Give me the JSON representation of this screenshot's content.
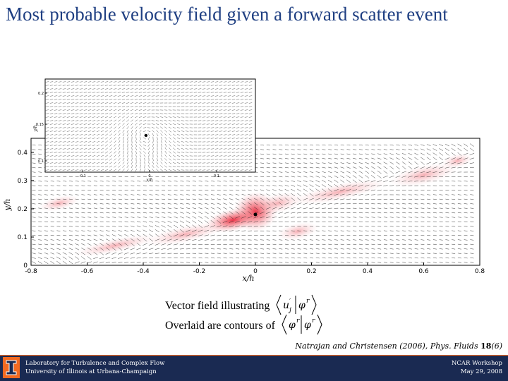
{
  "slide": {
    "title": "Most probable velocity field given a forward scatter event"
  },
  "chart_data": {
    "type": "vector-field-contour",
    "main": {
      "xlabel": "x/h",
      "ylabel": "y/h",
      "xlim": [
        -0.8,
        0.8
      ],
      "ylim": [
        0,
        0.45
      ],
      "xticks": [
        "-0.8",
        "-0.6",
        "-0.4",
        "-0.2",
        "0",
        "0.2",
        "0.4",
        "0.6",
        "0.8"
      ],
      "yticks": [
        "0",
        "0.1",
        "0.2",
        "0.3",
        "0.4"
      ],
      "event_point": [
        0,
        0.18
      ]
    },
    "inset": {
      "xlabel": "x/h",
      "ylabel": "y/h",
      "xticks": [
        "-0.1",
        "0",
        "0.1"
      ],
      "yticks": [
        "0.1",
        "0.15",
        "0.2"
      ]
    },
    "contour_color": "#e03040"
  },
  "caption": {
    "line1": "Vector field illustrating",
    "line2": "Overlaid are contours of"
  },
  "citation": {
    "authors": "Natrajan and Christensen (2006), ",
    "journal": "Phys. Fluids ",
    "volume": "18",
    "issue": "(6)"
  },
  "footer": {
    "lab": "Laboratory for Turbulence and Complex Flow",
    "university": "University of Illinois at Urbana-Champaign",
    "event": "NCAR Workshop",
    "date": "May 29, 2008",
    "logo_letter": "I",
    "logo_color": "#f26a21",
    "bar_color": "#1a2a52"
  }
}
